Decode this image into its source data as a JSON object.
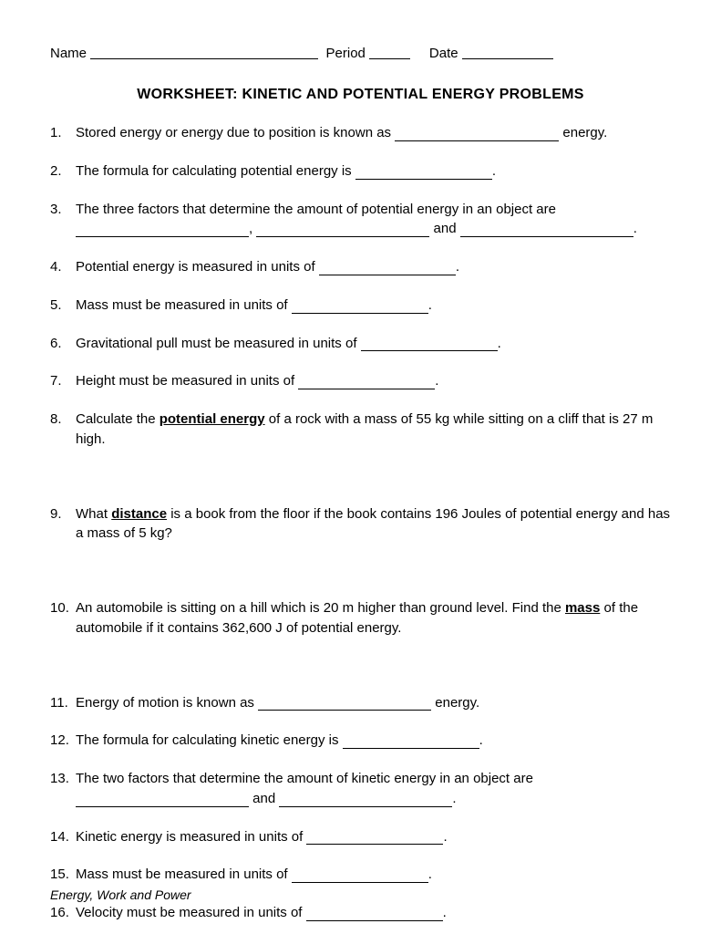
{
  "header": {
    "name_label": "Name",
    "period_label": "Period",
    "date_label": "Date"
  },
  "title": "WORKSHEET:  KINETIC AND POTENTIAL ENERGY PROBLEMS",
  "questions": {
    "q1_a": "Stored energy or energy due to position is known as ",
    "q1_b": " energy.",
    "q2_a": "The formula for calculating potential energy is ",
    "q2_b": ".",
    "q3_a": "The three factors that determine the amount of potential energy in an object are ",
    "q3_b": ", ",
    "q3_c": " and ",
    "q3_d": ".",
    "q4_a": "Potential energy is measured in units of ",
    "q4_b": ".",
    "q5_a": "Mass must be measured in units of ",
    "q5_b": ".",
    "q6_a": "Gravitational pull must be measured in units of ",
    "q6_b": ".",
    "q7_a": "Height must be measured in units of ",
    "q7_b": ".",
    "q8_a": "Calculate the ",
    "q8_bold": "potential energy",
    "q8_b": " of a rock with a mass of 55 kg while sitting on a cliff that is 27 m high.",
    "q9_a": "What ",
    "q9_bold": "distance",
    "q9_b": " is a book from the floor if the book contains 196 Joules of potential energy and has a mass of 5 kg?",
    "q10_a": "An automobile is sitting on a hill which is 20 m higher than ground level.  Find the ",
    "q10_bold": "mass",
    "q10_b": " of the automobile if it contains 362,600 J of potential energy.",
    "q11_a": "Energy of motion is known as ",
    "q11_b": " energy.",
    "q12_a": "The formula for calculating kinetic energy is ",
    "q12_b": ".",
    "q13_a": "The two factors that determine the amount of kinetic energy in an object are ",
    "q13_b": " and ",
    "q13_c": ".",
    "q14_a": "Kinetic energy is measured in units of ",
    "q14_b": ".",
    "q15_a": "Mass must be measured in units of ",
    "q15_b": ".",
    "q16_a": "Velocity must be measured in units of ",
    "q16_b": "."
  },
  "footer": "Energy, Work and Power"
}
